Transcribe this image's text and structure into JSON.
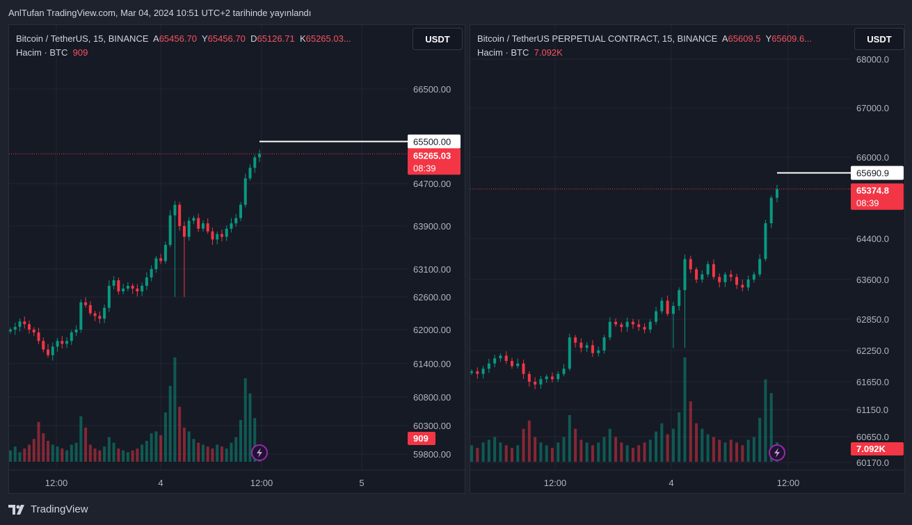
{
  "header": {
    "title": "AnlTufan TradingView.com, Mar 04, 2024 10:51 UTC+2 tarihinde yayınlandı"
  },
  "footer": {
    "brand": "TradingView",
    "logo_icon": "tradingview-logo-icon"
  },
  "colors": {
    "up": "#089981",
    "down": "#f23645",
    "background": "#161a25",
    "grid": "#232733",
    "accent_purple": "#9c27b0"
  },
  "chart_data": [
    {
      "type": "candlestick",
      "symbol": "Bitcoin / TetherUS, 15, BINANCE",
      "ohlc_labels": {
        "o_prefix": "A",
        "o": "65456.70",
        "h_prefix": "Y",
        "h": "65456.70",
        "l_prefix": "D",
        "l": "65126.71",
        "c_prefix": "K",
        "c": "65265.03..."
      },
      "volume_label": "Hacim · BTC",
      "volume_value": "909",
      "currency_button": "USDT",
      "y_ticks": [
        "66500.00",
        "64700.00",
        "63900.00",
        "63100.00",
        "62600.00",
        "62000.00",
        "61400.00",
        "60800.00",
        "60300.00",
        "59800.00"
      ],
      "x_ticks": [
        "12:00",
        "4",
        "12:00",
        "5"
      ],
      "high_line": {
        "value": 65500,
        "label": "65500.00"
      },
      "last_price": {
        "value": 65265.03,
        "label": "65265.03",
        "countdown": "08:39"
      },
      "last_volume_label": "909",
      "closes": [
        62000,
        62050,
        62150,
        62100,
        62000,
        61950,
        61800,
        61650,
        61550,
        61700,
        61800,
        61750,
        61800,
        61950,
        62000,
        62500,
        62450,
        62300,
        62250,
        62200,
        62400,
        62800,
        62900,
        62700,
        62750,
        62800,
        62750,
        62700,
        62800,
        62950,
        63100,
        63300,
        63250,
        63550,
        64100,
        64300,
        63900,
        63700,
        64000,
        64050,
        63850,
        63950,
        63800,
        63650,
        63750,
        63700,
        63850,
        63950,
        64050,
        64300,
        64800,
        65000,
        65200,
        65265
      ],
      "volumes": [
        600,
        800,
        500,
        700,
        900,
        1200,
        2100,
        1500,
        1100,
        900,
        800,
        700,
        600,
        900,
        1000,
        2400,
        1800,
        900,
        700,
        600,
        800,
        1300,
        1000,
        700,
        600,
        500,
        600,
        700,
        900,
        1100,
        1500,
        1600,
        1400,
        2600,
        4000,
        5500,
        2900,
        1800,
        1600,
        1200,
        1000,
        900,
        800,
        700,
        900,
        800,
        700,
        1000,
        1300,
        2200,
        4400,
        3600,
        2300,
        909
      ],
      "spike_low": 62600
    },
    {
      "type": "candlestick",
      "symbol": "Bitcoin / TetherUS PERPETUAL CONTRACT, 15, BINANCE",
      "ohlc_labels": {
        "o_prefix": "A",
        "o": "65609.5",
        "h_prefix": "Y",
        "h": "65609.6..."
      },
      "volume_label": "Hacim · BTC",
      "volume_value": "7.092K",
      "currency_button": "USDT",
      "y_ticks": [
        "68000.0",
        "67000.0",
        "66000.0",
        "64400.0",
        "63600.0",
        "62850.0",
        "62250.0",
        "61650.0",
        "61150.0",
        "60650.0",
        "60170.0"
      ],
      "x_ticks": [
        "12:00",
        "4",
        "12:00"
      ],
      "high_line": {
        "value": 65690.9,
        "label": "65690.9"
      },
      "last_price": {
        "value": 65374.8,
        "label": "65374.8",
        "countdown": "08:39"
      },
      "last_volume_label": "7.092K",
      "closes": [
        61850,
        61800,
        61900,
        62000,
        62100,
        62150,
        62050,
        61950,
        62000,
        61800,
        61650,
        61600,
        61700,
        61750,
        61700,
        61800,
        61900,
        62500,
        62400,
        62300,
        62350,
        62200,
        62250,
        62500,
        62800,
        62750,
        62700,
        62800,
        62750,
        62700,
        62650,
        62800,
        63000,
        63200,
        62950,
        63100,
        63400,
        64000,
        63800,
        63600,
        63700,
        63900,
        63650,
        63550,
        63700,
        63650,
        63500,
        63450,
        63600,
        63700,
        64000,
        64700,
        65200,
        65374
      ],
      "volumes": [
        6000,
        5000,
        7000,
        8000,
        9000,
        7000,
        6000,
        5000,
        6000,
        12000,
        15000,
        9000,
        7000,
        6000,
        5000,
        7000,
        9000,
        17000,
        12000,
        8000,
        7000,
        6000,
        7000,
        9000,
        12000,
        9000,
        7000,
        6000,
        5000,
        6000,
        7000,
        8000,
        11000,
        14000,
        10000,
        12000,
        18000,
        38000,
        22000,
        14000,
        12000,
        10000,
        9000,
        8000,
        7000,
        8000,
        7000,
        6000,
        8000,
        9000,
        16000,
        30000,
        25000,
        7092
      ],
      "spike_low": 62300
    }
  ]
}
